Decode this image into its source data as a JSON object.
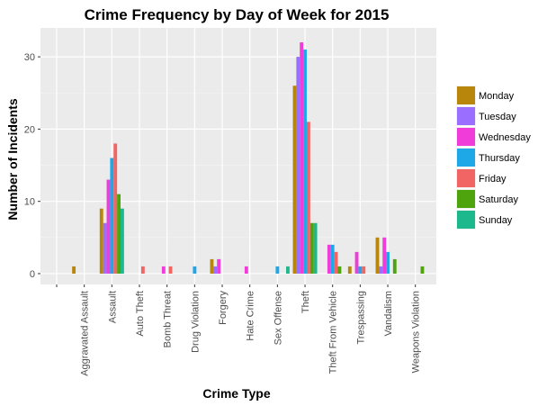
{
  "chart_data": {
    "type": "bar",
    "title": "Crime Frequency by Day of Week for 2015",
    "xlabel": "Crime Type",
    "ylabel": "Number of Incidents",
    "ylim": [
      -1.5,
      34
    ],
    "yticks": [
      0,
      10,
      20,
      30
    ],
    "grid": true,
    "legend_position": "right",
    "categories": [
      "",
      "Aggravated Assault",
      "Assault",
      "Auto Theft",
      "Bomb Threat",
      "Drug Violation",
      "Forgery",
      "Hate Crime",
      "Sex Offense",
      "Theft",
      "Theft From Vehicle",
      "Trespassing",
      "Vandalism",
      "Weapons Violation"
    ],
    "series": [
      {
        "name": "Monday",
        "color": "#B8860B",
        "values": [
          0,
          1,
          9,
          0,
          0,
          0,
          2,
          0,
          0,
          26,
          0,
          1,
          5,
          0
        ]
      },
      {
        "name": "Tuesday",
        "color": "#9A6EFF",
        "values": [
          0,
          0,
          7,
          0,
          0,
          0,
          1,
          0,
          0,
          30,
          0,
          0,
          1,
          0
        ]
      },
      {
        "name": "Wednesday",
        "color": "#F03CD9",
        "values": [
          0,
          0,
          13,
          0,
          1,
          0,
          2,
          1,
          0,
          32,
          4,
          3,
          5,
          0
        ]
      },
      {
        "name": "Thursday",
        "color": "#1EA8E8",
        "values": [
          0,
          0,
          16,
          0,
          0,
          1,
          0,
          0,
          1,
          31,
          4,
          1,
          3,
          0
        ]
      },
      {
        "name": "Friday",
        "color": "#F26565",
        "values": [
          0,
          0,
          18,
          1,
          1,
          0,
          0,
          0,
          0,
          21,
          3,
          1,
          0,
          0
        ]
      },
      {
        "name": "Saturday",
        "color": "#4EA40C",
        "values": [
          0,
          0,
          11,
          0,
          0,
          0,
          0,
          0,
          0,
          7,
          1,
          0,
          2,
          1
        ]
      },
      {
        "name": "Sunday",
        "color": "#1DB98C",
        "values": [
          0,
          0,
          9,
          0,
          0,
          0,
          0,
          0,
          1,
          7,
          0,
          0,
          0,
          0
        ]
      }
    ]
  }
}
